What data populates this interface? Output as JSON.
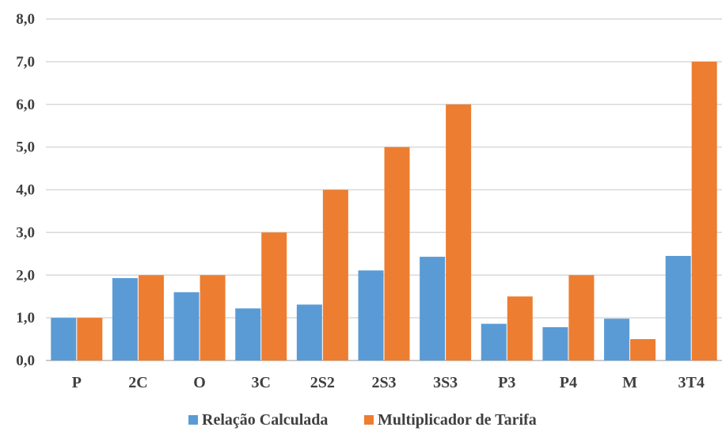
{
  "chart_data": {
    "type": "bar",
    "title": "",
    "xlabel": "",
    "ylabel": "",
    "categories": [
      "P",
      "2C",
      "O",
      "3C",
      "2S2",
      "2S3",
      "3S3",
      "P3",
      "P4",
      "M",
      "3T4"
    ],
    "series": [
      {
        "name": "Relação Calculada",
        "color": "#5b9bd5",
        "values": [
          1.0,
          1.93,
          1.6,
          1.22,
          1.31,
          2.11,
          2.43,
          0.86,
          0.78,
          0.98,
          2.45
        ]
      },
      {
        "name": "Multiplicador de Tarifa",
        "color": "#ed7d31",
        "values": [
          1.0,
          2.0,
          2.0,
          3.0,
          4.0,
          5.0,
          6.0,
          1.5,
          2.0,
          0.5,
          7.0
        ]
      }
    ],
    "ylim": [
      0,
      8
    ],
    "yticks": [
      "0,0",
      "1,0",
      "2,0",
      "3,0",
      "4,0",
      "5,0",
      "6,0",
      "7,0",
      "8,0"
    ],
    "grid": true,
    "legend": "bottom"
  }
}
